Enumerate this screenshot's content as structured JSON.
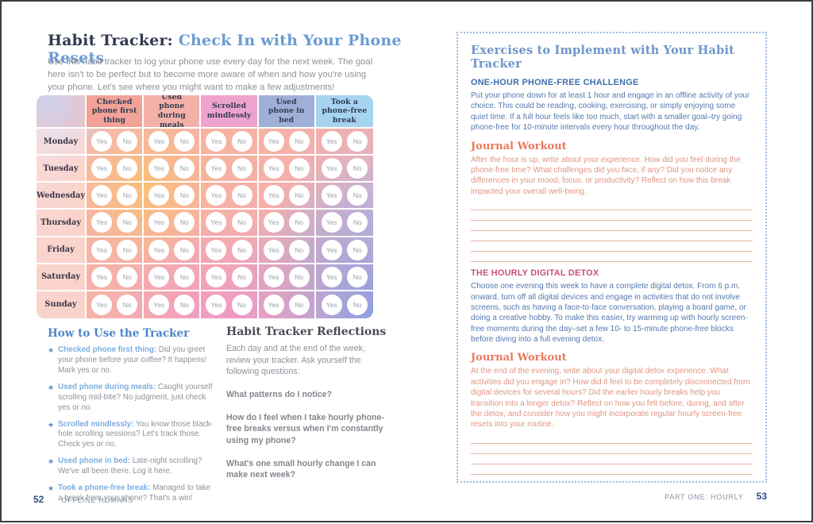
{
  "colors": {
    "title_accent": "#6b9bd2",
    "navy_heading": "#30394e",
    "body_gray": "#8d9199",
    "how_to_blue": "#4d86c6",
    "lead_blue": "#7badde",
    "challenge_blue": "#3d6cae",
    "body_blue": "#5579ae",
    "journal_coral": "#e8795c",
    "journal_body_coral": "#e09583",
    "detox_pink": "#c8506f",
    "writing_line": "#e9b6a3",
    "dotted_border": "#9cb9dd"
  },
  "left_page": {
    "title_prefix": "Habit Tracker: ",
    "title_highlight": "Check In with Your Phone Resets",
    "intro": "Use this habit tracker to log your phone use every day for the next week. The goal here isn't to be perfect but to become more aware of when and how you're using your phone. Let's see where you might want to make a few adjustments!",
    "tracker": {
      "columns": [
        {
          "label": "Checked phone first thing",
          "color": "#f2a296"
        },
        {
          "label": "Used phone during meals",
          "color": "#f4b1a8"
        },
        {
          "label": "Scrolled mindlessly",
          "color": "#eda3cd"
        },
        {
          "label": "Used phone in bed",
          "color": "#9fb0d8"
        },
        {
          "label": "Took a phone-free break",
          "color": "#a6d3f0"
        }
      ],
      "rows": [
        "Monday",
        "Tuesday",
        "Wednesday",
        "Thursday",
        "Friday",
        "Saturday",
        "Sunday"
      ],
      "option_yes": "Yes",
      "option_no": "No"
    },
    "how_to": {
      "heading": "How to Use the Tracker",
      "bullet_glyph": "★",
      "items": [
        {
          "lead": "Checked phone first thing:",
          "text": "Did you greet your phone before your coffee? It happens! Mark yes or no."
        },
        {
          "lead": "Used phone during meals:",
          "text": "Caught yourself scrolling mid-bite? No judgment, just check yes or no."
        },
        {
          "lead": "Scrolled mindlessly:",
          "text": "You know those black-hole scrolling sessions? Let's track those. Check yes or no."
        },
        {
          "lead": "Used phone in bed:",
          "text": "Late-night scrolling? We've all been there. Log it here."
        },
        {
          "lead": "Took a phone-free break:",
          "text": "Managed to take a break from your phone? That's a win!"
        }
      ]
    },
    "reflections": {
      "heading": "Habit Tracker Reflections",
      "intro": "Each day and at the end of the week, review your tracker. Ask yourself the following questions:",
      "questions": [
        "What patterns do I notice?",
        "How do I feel when I take hourly phone-free breaks versus when I'm constantly using my phone?",
        "What's one small hourly change I can make next week?"
      ]
    },
    "footer": {
      "page_number": "52",
      "label": "OFFLINE HUMANS"
    }
  },
  "right_page": {
    "panel": {
      "heading": "Exercises to Implement with Your Habit Tracker",
      "challenge1": {
        "heading": "ONE-HOUR PHONE-FREE CHALLENGE",
        "body": "Put your phone down for at least 1 hour and engage in an offline activity of your choice. This could be reading, cooking, exercising, or simply enjoying some quiet time. If a full hour feels like too much, start with a smaller goal–try going phone-free for 10-minute intervals every hour throughout the day."
      },
      "journal1": {
        "heading": "Journal Workout",
        "body": "After the hour is up, write about your experience. How did you feel during the phone-free time? What challenges did you face, if any? Did you notice any differences in your mood, focus, or productivity? Reflect on how this break impacted your overall well-being.",
        "line_count": 6
      },
      "challenge2": {
        "heading": "THE HOURLY DIGITAL DETOX",
        "body": "Choose one evening this week to have a complete digital detox. From 6 p.m. onward, turn off all digital devices and engage in activities that do not involve screens, such as having a face-to-face conversation, playing a board game, or doing a creative hobby. To make this easier, try warming up with hourly screen-free moments during the day–set a few 10- to 15-minute phone-free blocks before diving into a full evening detox."
      },
      "journal2": {
        "heading": "Journal Workout",
        "body": "At the end of the evening, write about your digital detox experience. What activities did you engage in? How did it feel to be completely disconnected from digital devices for several hours? Did the earlier hourly breaks help you transition into a longer detox? Reflect on how you felt before, during, and after the detox, and consider how you might incorporate regular hourly screen-free resets into your routine.",
        "line_count": 6
      }
    },
    "footer": {
      "label": "PART ONE: HOURLY",
      "page_number": "53"
    }
  }
}
